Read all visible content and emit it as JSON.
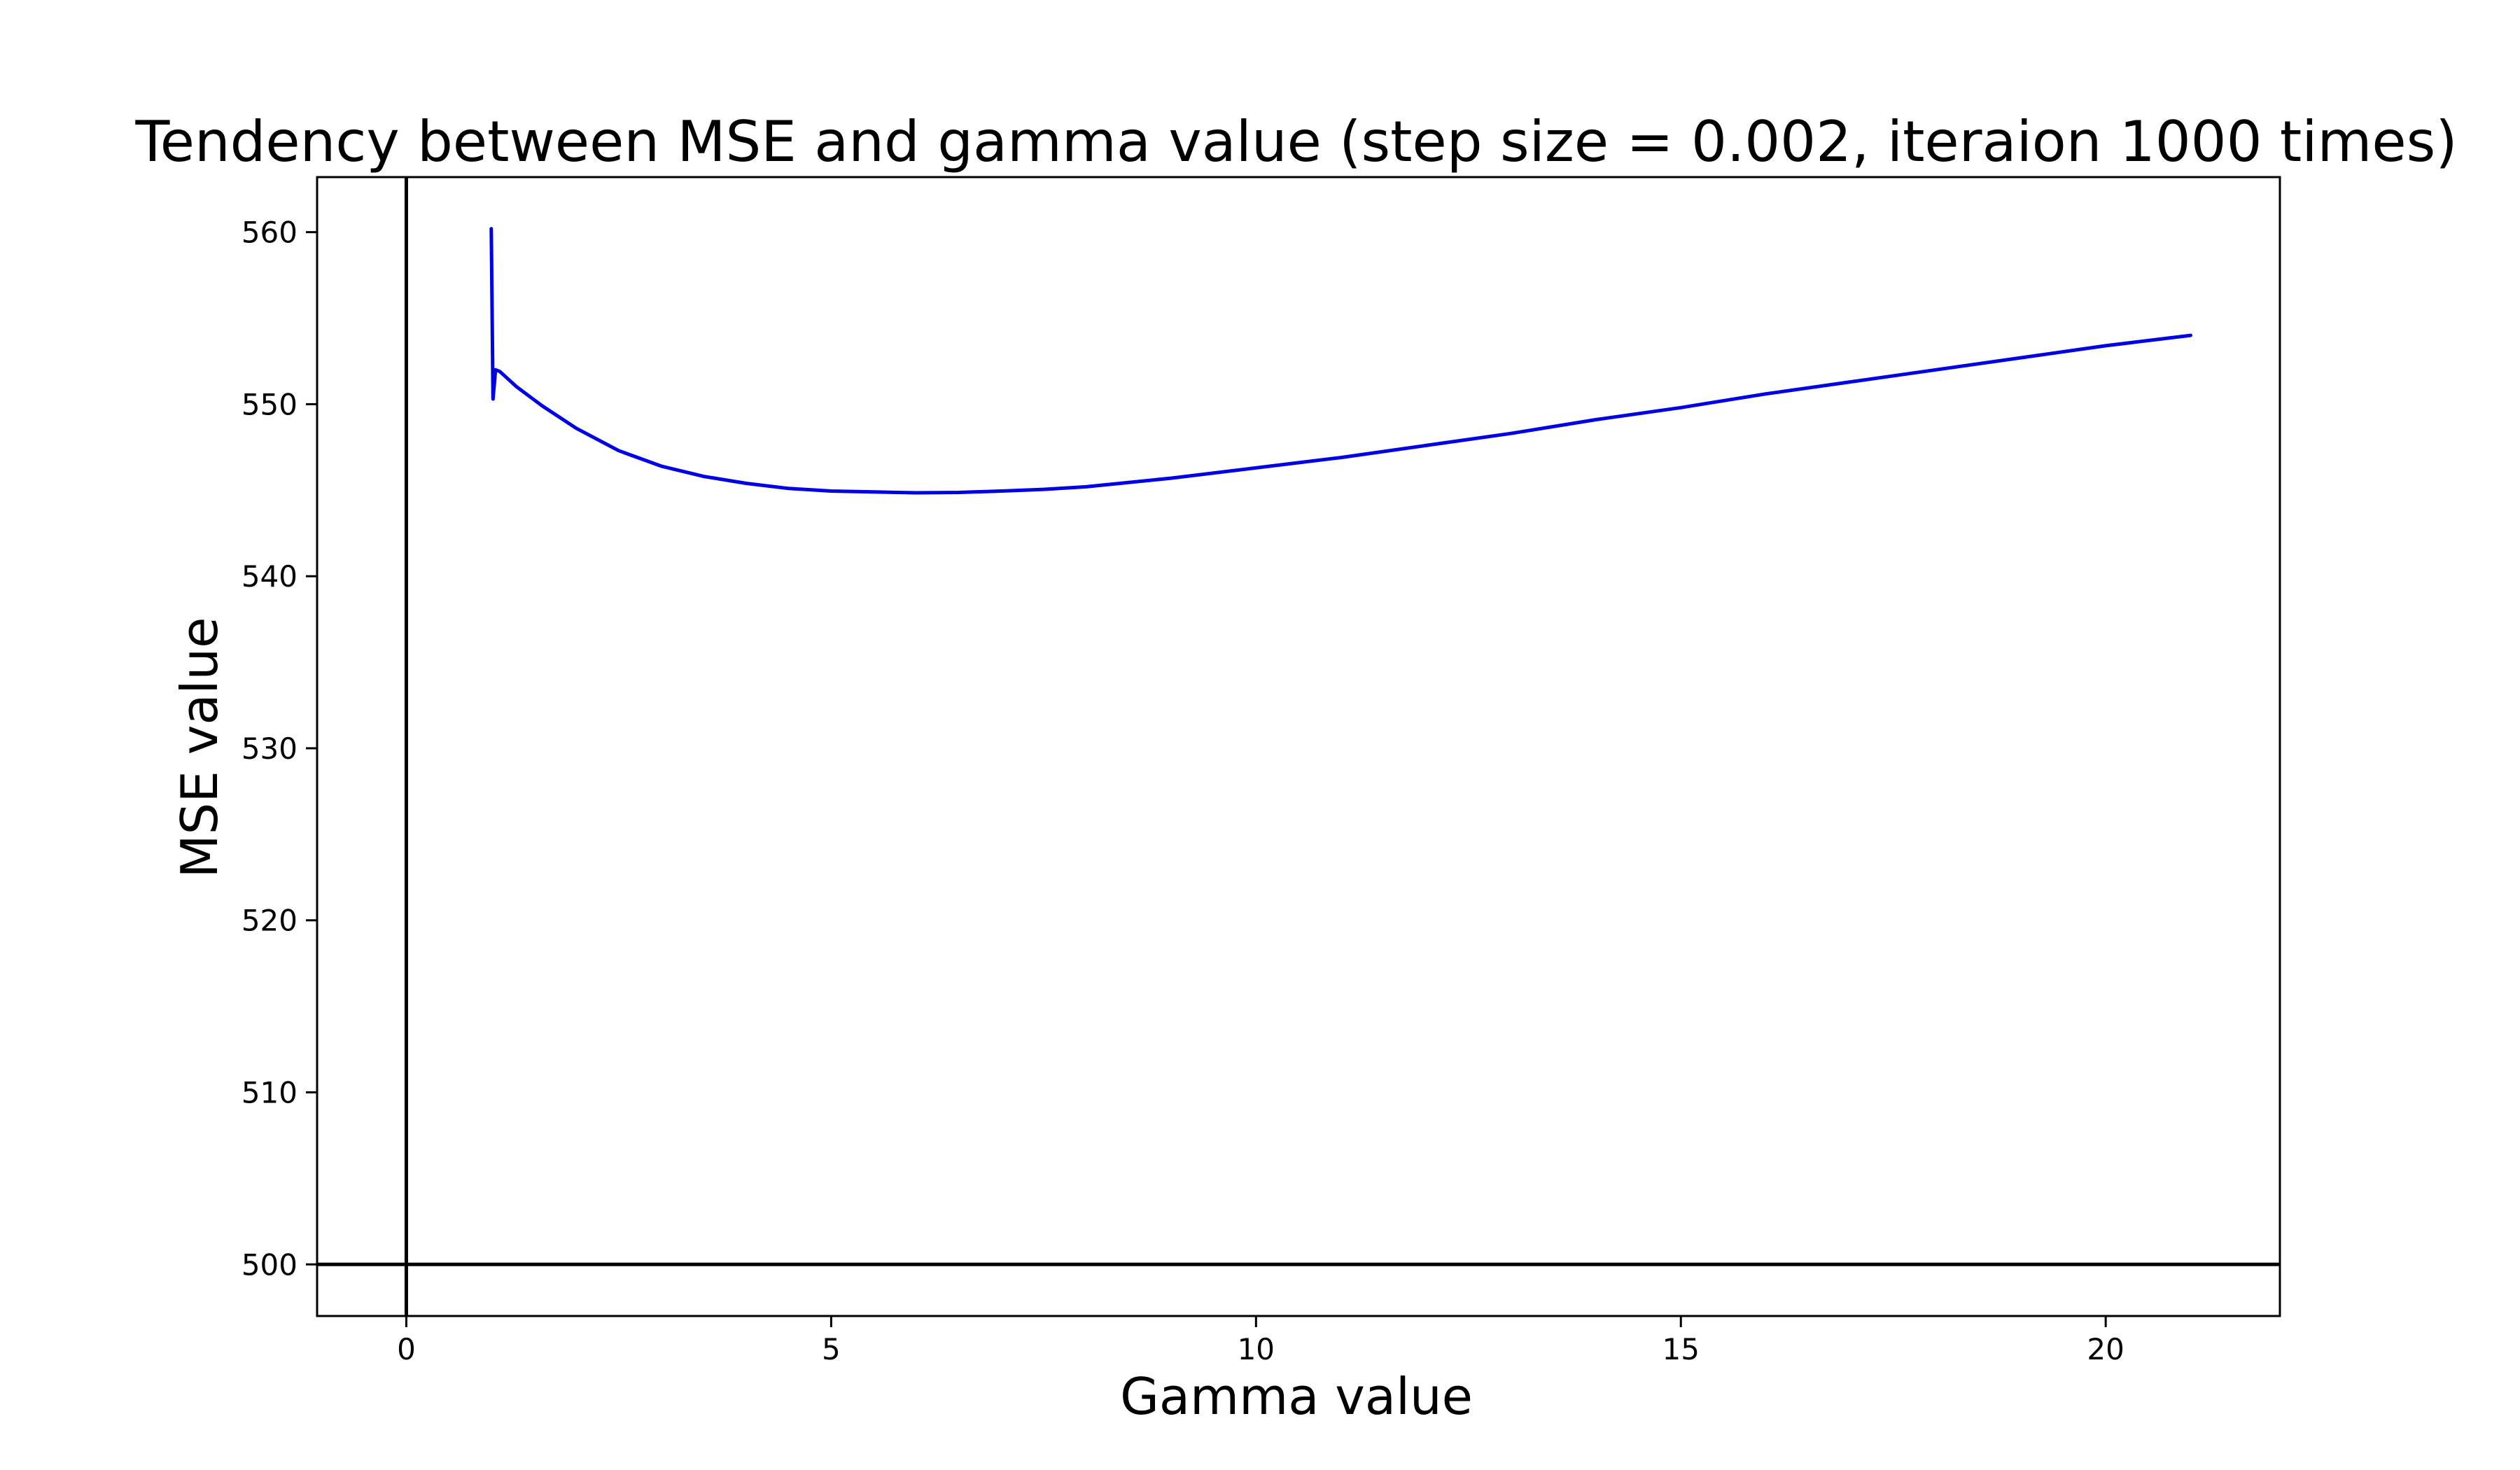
{
  "chart_data": {
    "type": "line",
    "title": "Tendency between MSE and gamma value (step size = 0.002, iteraion 1000 times)",
    "xlabel": "Gamma value",
    "ylabel": "MSE value",
    "xlim": [
      -1.05,
      22.05
    ],
    "ylim": [
      497,
      563.2
    ],
    "xticks": [
      0,
      5,
      10,
      15,
      20
    ],
    "yticks": [
      500,
      510,
      520,
      530,
      540,
      550,
      560
    ],
    "grid": false,
    "legend": "none",
    "reference_lines": {
      "vertical_x": 0,
      "horizontal_y": 500,
      "color": "#000000"
    },
    "series": [
      {
        "color": "#0000e6",
        "x": [
          1.0,
          1.02,
          1.05,
          1.1,
          1.3,
          1.6,
          2.0,
          2.5,
          3.0,
          3.5,
          4.0,
          4.5,
          5.0,
          5.5,
          6.0,
          6.5,
          7.0,
          7.5,
          8.0,
          9.0,
          10.0,
          11.0,
          12.0,
          13.0,
          14.0,
          15.0,
          16.0,
          17.0,
          18.0,
          19.0,
          20.0,
          21.0
        ],
        "y": [
          560.2,
          550.3,
          552.0,
          551.9,
          551.0,
          549.9,
          548.6,
          547.3,
          546.4,
          545.8,
          545.4,
          545.1,
          544.95,
          544.9,
          544.85,
          544.87,
          544.95,
          545.05,
          545.2,
          545.7,
          546.3,
          546.9,
          547.6,
          548.3,
          549.1,
          549.8,
          550.6,
          551.3,
          552.0,
          552.7,
          553.4,
          554.0
        ]
      }
    ]
  }
}
